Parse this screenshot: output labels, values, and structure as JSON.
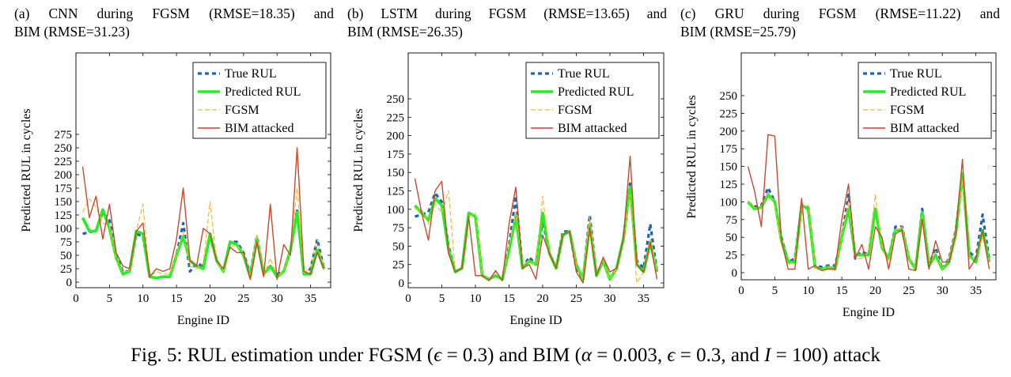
{
  "figure_caption": {
    "prefix": "Fig. 5: RUL estimation under FGSM (",
    "eps1": "ϵ",
    "eq1": " = 0.3) and BIM (",
    "alpha": "α",
    "eq2": " = 0.003, ",
    "eps2": "ϵ",
    "eq3": " = 0.3, and  ",
    "iter": "I",
    "eq4": " = 100) attack"
  },
  "colors": {
    "true_rul": "#1f63b4",
    "predicted_rul": "#22f022",
    "fgsm": "#f7b733",
    "bim": "#c8492b"
  },
  "chart_data": [
    {
      "type": "line",
      "subcaption_line1": "(a) CNN during FGSM (RMSE=18.35) and",
      "subcaption_line2": "BIM (RMSE=31.23)",
      "title": "",
      "xlabel": "Engine ID",
      "ylabel": "Predicted RUL in cycles",
      "xlim": [
        0,
        38
      ],
      "ylim": [
        0,
        275
      ],
      "xticks": [
        0,
        5,
        10,
        15,
        20,
        25,
        30,
        35
      ],
      "yticks": [
        0,
        25,
        50,
        75,
        100,
        125,
        150,
        175,
        200,
        225,
        250,
        275
      ],
      "legend_position": "top-right",
      "x": [
        1,
        2,
        3,
        4,
        5,
        6,
        7,
        8,
        9,
        10,
        11,
        12,
        13,
        14,
        15,
        16,
        17,
        18,
        19,
        20,
        21,
        22,
        23,
        24,
        25,
        26,
        27,
        28,
        29,
        30,
        31,
        32,
        33,
        34,
        35,
        36,
        37
      ],
      "series": [
        {
          "name": "True RUL",
          "style": "true",
          "values": [
            90,
            93,
            96,
            130,
            115,
            50,
            20,
            20,
            90,
            85,
            10,
            8,
            10,
            10,
            50,
            110,
            20,
            35,
            30,
            85,
            40,
            20,
            75,
            75,
            55,
            15,
            85,
            15,
            30,
            15,
            20,
            60,
            135,
            15,
            25,
            80,
            25
          ]
        },
        {
          "name": "Predicted RUL",
          "style": "pred",
          "values": [
            120,
            95,
            95,
            135,
            100,
            45,
            15,
            20,
            95,
            90,
            10,
            8,
            10,
            10,
            50,
            85,
            40,
            30,
            25,
            90,
            40,
            20,
            75,
            70,
            50,
            10,
            80,
            15,
            30,
            10,
            20,
            60,
            130,
            15,
            15,
            60,
            25
          ]
        },
        {
          "name": "FGSM",
          "style": "fgsm",
          "values": [
            130,
            155,
            140,
            110,
            105,
            40,
            20,
            20,
            95,
            145,
            10,
            20,
            15,
            15,
            50,
            95,
            30,
            25,
            35,
            150,
            40,
            20,
            65,
            70,
            50,
            10,
            90,
            10,
            45,
            10,
            20,
            60,
            175,
            15,
            30,
            80,
            20
          ]
        },
        {
          "name": "BIM attacked",
          "style": "bim",
          "values": [
            215,
            120,
            160,
            80,
            145,
            55,
            30,
            25,
            95,
            110,
            10,
            25,
            20,
            25,
            80,
            175,
            40,
            30,
            100,
            90,
            40,
            25,
            65,
            55,
            55,
            5,
            75,
            10,
            145,
            5,
            70,
            50,
            250,
            20,
            15,
            55,
            25
          ]
        }
      ]
    },
    {
      "type": "line",
      "subcaption_line1": "(b) LSTM during FGSM (RMSE=13.65) and",
      "subcaption_line2": "BIM (RMSE=26.35)",
      "title": "",
      "xlabel": "Engine ID",
      "ylabel": "Predicted RUL in cycles",
      "xlim": [
        0,
        38
      ],
      "ylim": [
        0,
        250
      ],
      "xticks": [
        0,
        5,
        10,
        15,
        20,
        25,
        30,
        35
      ],
      "yticks": [
        0,
        25,
        50,
        75,
        100,
        125,
        150,
        175,
        200,
        225,
        250
      ],
      "legend_position": "top-right",
      "x": [
        1,
        2,
        3,
        4,
        5,
        6,
        7,
        8,
        9,
        10,
        11,
        12,
        13,
        14,
        15,
        16,
        17,
        18,
        19,
        20,
        21,
        22,
        23,
        24,
        25,
        26,
        27,
        28,
        29,
        30,
        31,
        32,
        33,
        34,
        35,
        36,
        37
      ],
      "series": [
        {
          "name": "True RUL",
          "style": "true",
          "values": [
            90,
            93,
            96,
            122,
            110,
            50,
            15,
            20,
            95,
            90,
            10,
            5,
            10,
            5,
            50,
            118,
            20,
            35,
            25,
            85,
            40,
            20,
            70,
            70,
            20,
            5,
            92,
            10,
            30,
            5,
            20,
            60,
            135,
            30,
            20,
            80,
            15
          ]
        },
        {
          "name": "Predicted RUL",
          "style": "pred",
          "values": [
            105,
            95,
            85,
            115,
            105,
            45,
            15,
            20,
            95,
            90,
            10,
            5,
            10,
            5,
            45,
            90,
            20,
            30,
            25,
            95,
            40,
            20,
            65,
            70,
            25,
            5,
            80,
            10,
            30,
            5,
            20,
            60,
            130,
            25,
            15,
            55,
            15
          ]
        },
        {
          "name": "FGSM",
          "style": "fgsm",
          "values": [
            100,
            100,
            80,
            108,
            95,
            125,
            15,
            20,
            90,
            95,
            10,
            5,
            15,
            5,
            50,
            95,
            25,
            30,
            25,
            118,
            40,
            20,
            65,
            70,
            25,
            5,
            90,
            10,
            30,
            5,
            20,
            60,
            120,
            0,
            15,
            60,
            15
          ]
        },
        {
          "name": "BIM attacked",
          "style": "bim",
          "values": [
            142,
            95,
            58,
            125,
            138,
            40,
            15,
            20,
            90,
            10,
            10,
            3,
            17,
            3,
            80,
            130,
            20,
            25,
            5,
            65,
            40,
            20,
            65,
            70,
            15,
            0,
            75,
            10,
            35,
            15,
            20,
            60,
            172,
            25,
            15,
            55,
            5
          ]
        }
      ]
    },
    {
      "type": "line",
      "subcaption_line1": "(c) GRU during FGSM (RMSE=11.22) and",
      "subcaption_line2": "BIM (RMSE=25.79)",
      "title": "",
      "xlabel": "Engine ID",
      "ylabel": "Predicted RUL in cycles",
      "xlim": [
        0,
        38
      ],
      "ylim": [
        0,
        250
      ],
      "xticks": [
        0,
        5,
        10,
        15,
        20,
        25,
        30,
        35
      ],
      "yticks": [
        0,
        25,
        50,
        75,
        100,
        125,
        150,
        175,
        200,
        225,
        250
      ],
      "legend_position": "top-right",
      "x": [
        1,
        2,
        3,
        4,
        5,
        6,
        7,
        8,
        9,
        10,
        11,
        12,
        13,
        14,
        15,
        16,
        17,
        18,
        19,
        20,
        21,
        22,
        23,
        24,
        25,
        26,
        27,
        28,
        29,
        30,
        31,
        32,
        33,
        34,
        35,
        36,
        37
      ],
      "series": [
        {
          "name": "True RUL",
          "style": "true",
          "values": [
            100,
            93,
            95,
            120,
            100,
            50,
            15,
            20,
            95,
            92,
            10,
            8,
            10,
            10,
            50,
            110,
            20,
            30,
            25,
            90,
            35,
            20,
            65,
            65,
            20,
            5,
            90,
            10,
            35,
            5,
            20,
            60,
            140,
            30,
            20,
            82,
            18
          ]
        },
        {
          "name": "Predicted RUL",
          "style": "pred",
          "values": [
            100,
            90,
            92,
            110,
            100,
            45,
            15,
            15,
            95,
            90,
            8,
            5,
            8,
            5,
            50,
            90,
            25,
            25,
            25,
            90,
            35,
            20,
            60,
            60,
            20,
            5,
            85,
            10,
            25,
            5,
            15,
            55,
            140,
            25,
            15,
            60,
            15
          ]
        },
        {
          "name": "FGSM",
          "style": "fgsm",
          "values": [
            102,
            92,
            90,
            115,
            95,
            40,
            10,
            20,
            90,
            95,
            8,
            5,
            8,
            5,
            50,
            100,
            20,
            20,
            30,
            110,
            35,
            15,
            60,
            65,
            20,
            5,
            80,
            10,
            30,
            5,
            20,
            60,
            130,
            20,
            20,
            50,
            15
          ]
        },
        {
          "name": "BIM attacked",
          "style": "bim",
          "values": [
            150,
            115,
            65,
            195,
            193,
            45,
            5,
            5,
            105,
            5,
            10,
            3,
            5,
            5,
            75,
            125,
            20,
            40,
            5,
            65,
            50,
            5,
            55,
            60,
            5,
            3,
            75,
            5,
            45,
            15,
            15,
            55,
            160,
            5,
            20,
            60,
            5
          ]
        }
      ]
    }
  ]
}
